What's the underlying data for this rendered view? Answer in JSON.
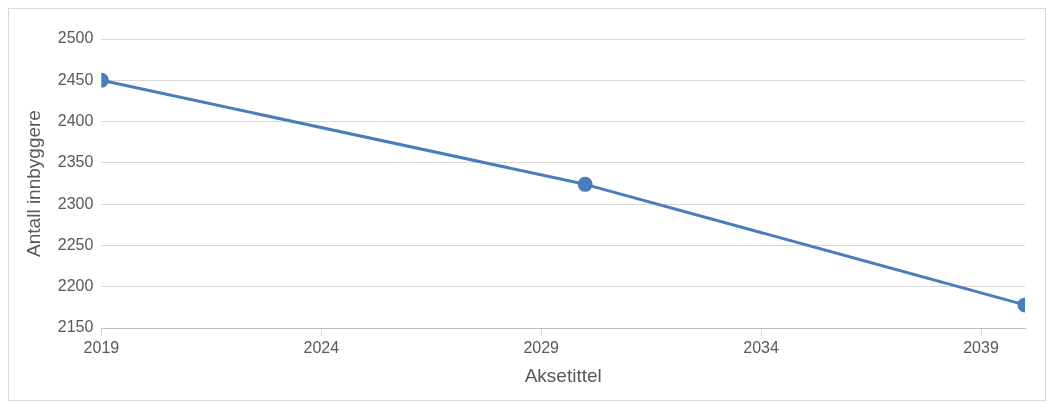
{
  "chart_data": {
    "type": "line",
    "xlabel": "Aksetittel",
    "ylabel": "Antall innbyggere",
    "x": [
      2019,
      2030,
      2040
    ],
    "series": [
      {
        "color": "#4a7ebb",
        "values": [
          2450,
          2324,
          2178
        ]
      }
    ],
    "xlim": [
      2019,
      2040
    ],
    "xticks": [
      2019,
      2024,
      2029,
      2034,
      2039
    ],
    "ylim": [
      2150,
      2500
    ],
    "yticks": [
      2150,
      2200,
      2250,
      2300,
      2350,
      2400,
      2450,
      2500
    ],
    "grid": "y",
    "legend": false,
    "marker": "circle",
    "line_style": "solid"
  }
}
